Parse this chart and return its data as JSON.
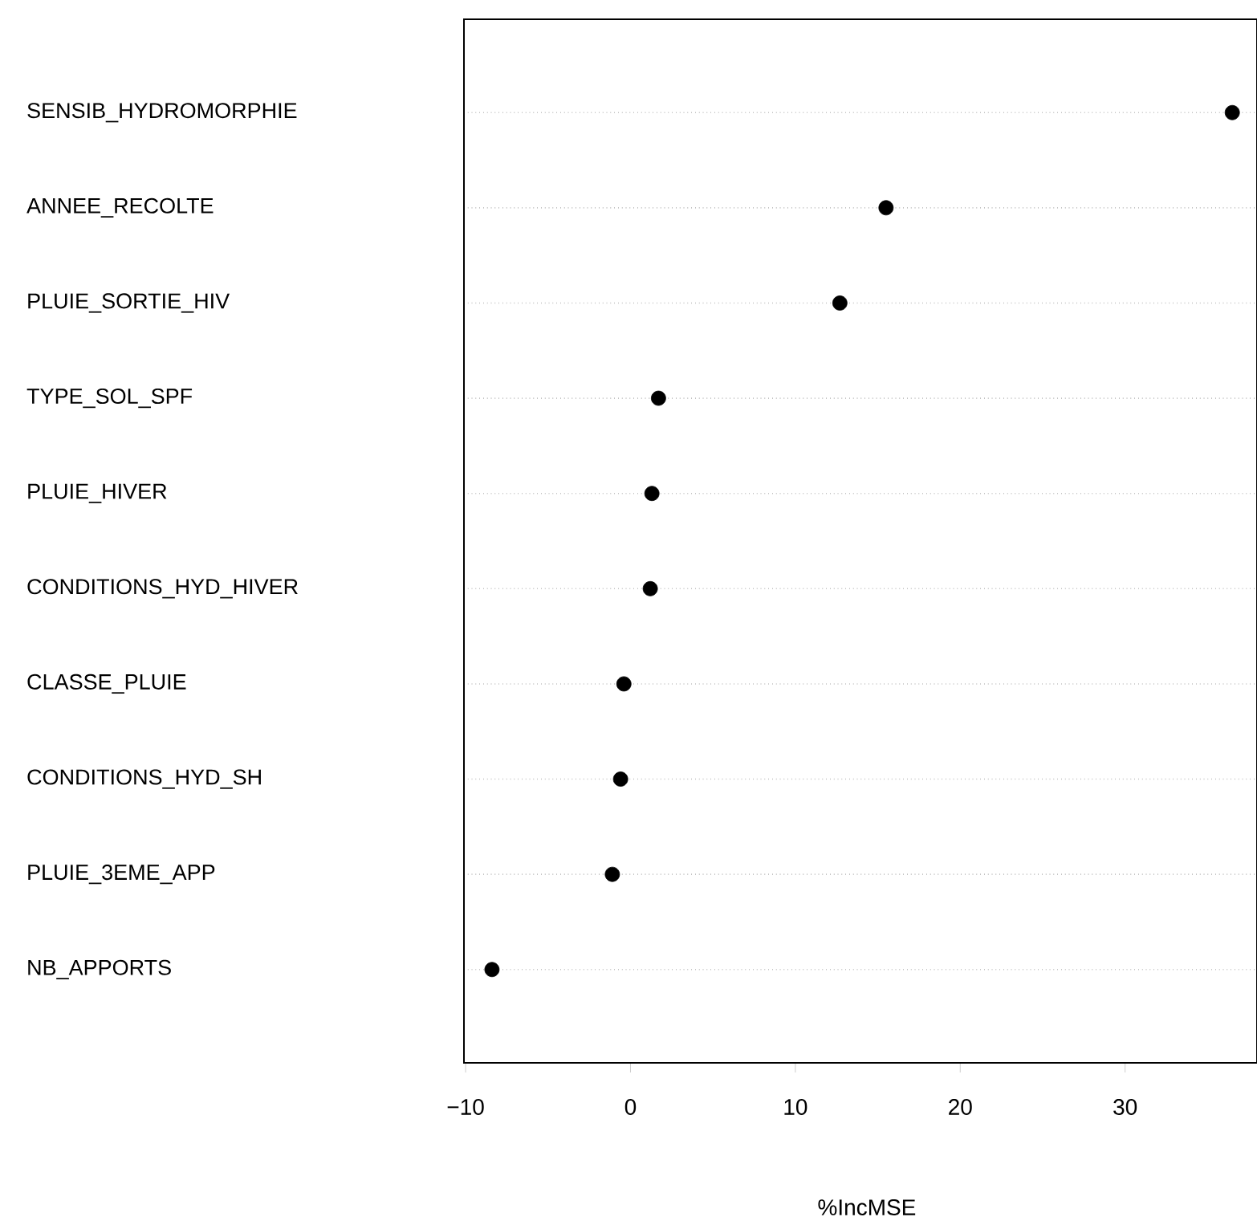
{
  "chart_data": {
    "type": "scatter",
    "orientation": "horizontal",
    "xlabel": "%IncMSE",
    "categories": [
      "SENSIB_HYDROMORPHIE",
      "ANNEE_RECOLTE",
      "PLUIE_SORTIE_HIV",
      "TYPE_SOL_SPF",
      "PLUIE_HIVER",
      "CONDITIONS_HYD_HIVER",
      "CLASSE_PLUIE",
      "CONDITIONS_HYD_SH",
      "PLUIE_3EME_APP",
      "NB_APPORTS"
    ],
    "values": [
      36.5,
      15.5,
      12.7,
      1.7,
      1.3,
      1.2,
      -0.4,
      -0.6,
      -1.1,
      -8.4
    ],
    "color": "#000000",
    "marker": "circle",
    "grid": "y",
    "xlim": [
      -10.1,
      38
    ],
    "xticks": [
      {
        "value": -10,
        "label": "−10"
      },
      0,
      10,
      20,
      30
    ]
  }
}
